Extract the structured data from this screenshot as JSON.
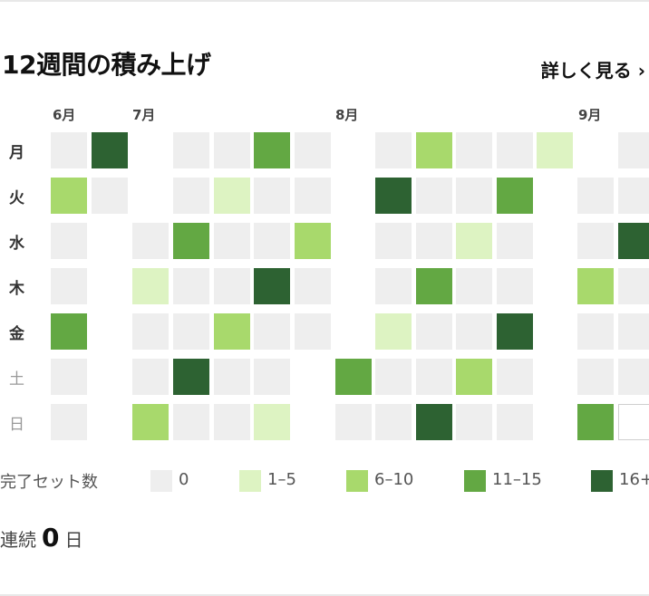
{
  "title": "12週間の積み上げ",
  "see_more_label": "詳しく見る ›",
  "months": [
    "6月",
    "7月",
    "8月",
    "9月"
  ],
  "days": [
    "月",
    "火",
    "水",
    "木",
    "金",
    "土",
    "日"
  ],
  "levels": [
    [
      0,
      4,
      null,
      0,
      0,
      3,
      0,
      null,
      0,
      2,
      0,
      0,
      1,
      null,
      0
    ],
    [
      2,
      0,
      null,
      0,
      1,
      0,
      0,
      null,
      4,
      0,
      0,
      3,
      null,
      0,
      0
    ],
    [
      0,
      null,
      0,
      3,
      0,
      0,
      2,
      null,
      0,
      0,
      1,
      0,
      null,
      0,
      4
    ],
    [
      0,
      null,
      1,
      0,
      0,
      4,
      0,
      null,
      0,
      3,
      0,
      0,
      null,
      2,
      0
    ],
    [
      3,
      null,
      0,
      0,
      2,
      0,
      0,
      null,
      1,
      0,
      0,
      4,
      null,
      0,
      0
    ],
    [
      0,
      null,
      0,
      4,
      0,
      0,
      null,
      3,
      0,
      0,
      2,
      0,
      null,
      0,
      0
    ],
    [
      0,
      null,
      2,
      0,
      0,
      1,
      null,
      0,
      0,
      4,
      0,
      0,
      null,
      3,
      "today"
    ]
  ],
  "level_colors": [
    "#eeeeee",
    "#ddf3c2",
    "#a8d96c",
    "#63a843",
    "#2d6232"
  ],
  "legend": {
    "title": "完了セット数",
    "items": [
      {
        "label": "0",
        "level": 0
      },
      {
        "label": "1–5",
        "level": 1
      },
      {
        "label": "6–10",
        "level": 2
      },
      {
        "label": "11–15",
        "level": 3
      },
      {
        "label": "16+",
        "level": 4
      }
    ]
  },
  "streak": {
    "prefix": "連続",
    "count": "0",
    "suffix": "日"
  }
}
